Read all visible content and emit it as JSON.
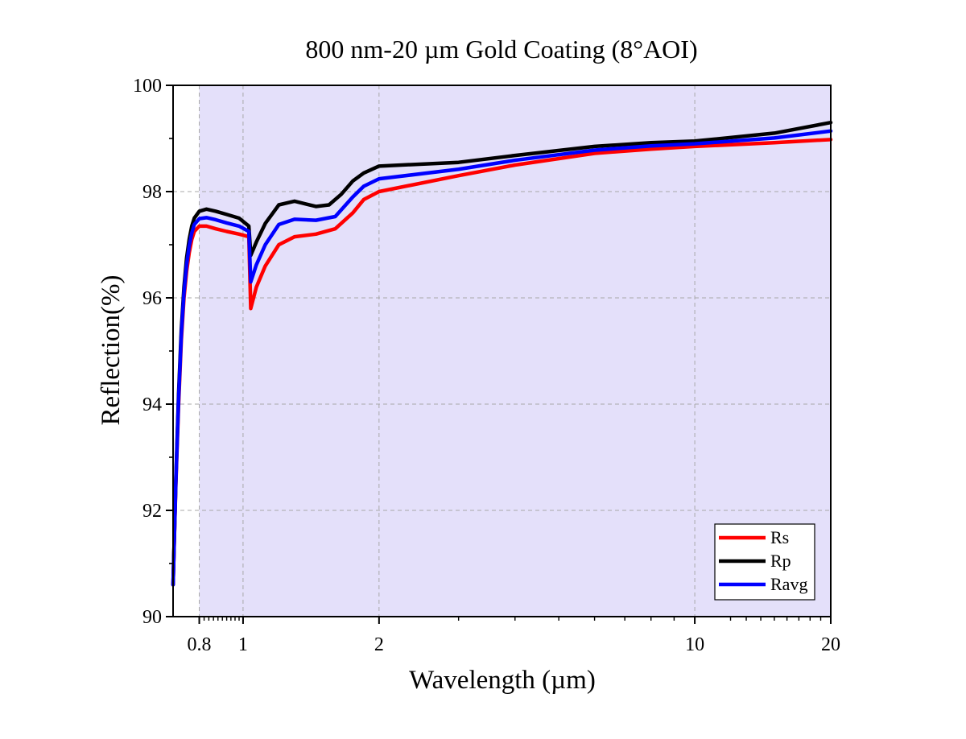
{
  "chart_data": {
    "type": "line",
    "title": "800 nm-20 µm Gold Coating (8°AOI)",
    "xlabel": "Wavelength (µm)",
    "ylabel": "Reflection(%)",
    "x_scale": "log",
    "xlim": [
      0.7,
      20
    ],
    "ylim": [
      90,
      100
    ],
    "x_ticks": [
      {
        "value": 0.8,
        "label": "0.8"
      },
      {
        "value": 1,
        "label": "1"
      },
      {
        "value": 2,
        "label": "2"
      },
      {
        "value": 10,
        "label": "10"
      },
      {
        "value": 20,
        "label": "20"
      }
    ],
    "y_ticks": [
      {
        "value": 90,
        "label": "90"
      },
      {
        "value": 92,
        "label": "92"
      },
      {
        "value": 94,
        "label": "94"
      },
      {
        "value": 96,
        "label": "96"
      },
      {
        "value": 98,
        "label": "98"
      },
      {
        "value": 100,
        "label": "100"
      }
    ],
    "shaded_region": {
      "x_from": 0.8,
      "x_to": 20,
      "color": "#e4e0fa"
    },
    "grid": true,
    "legend_position": "bottom-right",
    "series": [
      {
        "name": "Rs",
        "color": "#ff0000",
        "points": [
          [
            0.7,
            90.6
          ],
          [
            0.71,
            92.5
          ],
          [
            0.72,
            94.0
          ],
          [
            0.73,
            95.2
          ],
          [
            0.74,
            96.0
          ],
          [
            0.75,
            96.5
          ],
          [
            0.76,
            96.85
          ],
          [
            0.77,
            97.1
          ],
          [
            0.78,
            97.25
          ],
          [
            0.8,
            97.35
          ],
          [
            0.83,
            97.35
          ],
          [
            0.87,
            97.3
          ],
          [
            0.92,
            97.25
          ],
          [
            0.98,
            97.2
          ],
          [
            1.03,
            97.15
          ],
          [
            1.04,
            95.8
          ],
          [
            1.07,
            96.2
          ],
          [
            1.12,
            96.6
          ],
          [
            1.2,
            97.0
          ],
          [
            1.3,
            97.15
          ],
          [
            1.45,
            97.2
          ],
          [
            1.6,
            97.3
          ],
          [
            1.75,
            97.6
          ],
          [
            1.85,
            97.85
          ],
          [
            2.0,
            98.0
          ],
          [
            3.0,
            98.3
          ],
          [
            4.0,
            98.5
          ],
          [
            6.0,
            98.72
          ],
          [
            8.0,
            98.8
          ],
          [
            10.0,
            98.85
          ],
          [
            15.0,
            98.92
          ],
          [
            20.0,
            98.98
          ]
        ]
      },
      {
        "name": "Rp",
        "color": "#000000",
        "points": [
          [
            0.7,
            90.6
          ],
          [
            0.71,
            92.6
          ],
          [
            0.72,
            94.2
          ],
          [
            0.73,
            95.4
          ],
          [
            0.74,
            96.2
          ],
          [
            0.75,
            96.75
          ],
          [
            0.76,
            97.1
          ],
          [
            0.77,
            97.35
          ],
          [
            0.78,
            97.5
          ],
          [
            0.8,
            97.63
          ],
          [
            0.83,
            97.67
          ],
          [
            0.87,
            97.63
          ],
          [
            0.92,
            97.57
          ],
          [
            0.98,
            97.5
          ],
          [
            1.03,
            97.35
          ],
          [
            1.04,
            96.8
          ],
          [
            1.07,
            97.05
          ],
          [
            1.12,
            97.4
          ],
          [
            1.2,
            97.75
          ],
          [
            1.3,
            97.82
          ],
          [
            1.45,
            97.72
          ],
          [
            1.55,
            97.75
          ],
          [
            1.65,
            97.95
          ],
          [
            1.75,
            98.2
          ],
          [
            1.85,
            98.35
          ],
          [
            2.0,
            98.48
          ],
          [
            3.0,
            98.55
          ],
          [
            4.0,
            98.68
          ],
          [
            6.0,
            98.85
          ],
          [
            8.0,
            98.92
          ],
          [
            10.0,
            98.95
          ],
          [
            15.0,
            99.1
          ],
          [
            20.0,
            99.3
          ]
        ]
      },
      {
        "name": "Ravg",
        "color": "#0000ff",
        "points": [
          [
            0.7,
            90.6
          ],
          [
            0.71,
            92.55
          ],
          [
            0.72,
            94.1
          ],
          [
            0.73,
            95.3
          ],
          [
            0.74,
            96.1
          ],
          [
            0.75,
            96.62
          ],
          [
            0.76,
            96.98
          ],
          [
            0.77,
            97.22
          ],
          [
            0.78,
            97.38
          ],
          [
            0.8,
            97.49
          ],
          [
            0.83,
            97.51
          ],
          [
            0.87,
            97.47
          ],
          [
            0.92,
            97.41
          ],
          [
            0.98,
            97.35
          ],
          [
            1.03,
            97.25
          ],
          [
            1.04,
            96.3
          ],
          [
            1.07,
            96.62
          ],
          [
            1.12,
            97.0
          ],
          [
            1.2,
            97.38
          ],
          [
            1.3,
            97.48
          ],
          [
            1.45,
            97.46
          ],
          [
            1.6,
            97.53
          ],
          [
            1.75,
            97.9
          ],
          [
            1.85,
            98.1
          ],
          [
            2.0,
            98.24
          ],
          [
            3.0,
            98.42
          ],
          [
            4.0,
            98.59
          ],
          [
            6.0,
            98.78
          ],
          [
            8.0,
            98.86
          ],
          [
            10.0,
            98.9
          ],
          [
            15.0,
            99.01
          ],
          [
            20.0,
            99.14
          ]
        ]
      }
    ]
  }
}
